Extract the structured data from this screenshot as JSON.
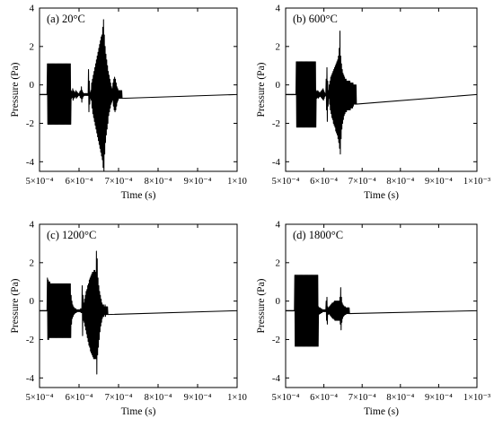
{
  "style": {
    "line_color": "#000000",
    "background": "#ffffff"
  },
  "chart_data": [
    {
      "type": "line",
      "panel_label": "(a) 20°C",
      "xlabel": "Time (s)",
      "ylabel": "Pressure (Pa)",
      "xlim": [
        0.0005,
        0.001
      ],
      "ylim": [
        -4.5,
        4
      ],
      "y_ticks": [
        -4,
        -2,
        0,
        2,
        4
      ],
      "y_tick_labels": [
        "-4",
        "-2",
        "0",
        "2",
        "4"
      ],
      "x_ticks": [
        0.0005,
        0.0006,
        0.0007,
        0.0008,
        0.0009,
        0.001
      ],
      "x_tick_labels": [
        "5×10⁻⁴",
        "6×10⁻⁴",
        "7×10⁻⁴",
        "8×10⁻⁴",
        "9×10⁻⁴",
        "1×10"
      ],
      "grid": false,
      "sampling": {
        "t_start": 0.0005,
        "dt": 1e-06
      },
      "series": [
        {
          "baseline": -0.5,
          "values": [
            -0.51,
            -0.49,
            -0.51,
            -0.49,
            -0.51,
            -0.49,
            -0.51,
            -0.49,
            -0.51,
            -0.49,
            -0.51,
            -0.49,
            -0.51,
            -0.49,
            -0.51,
            -0.49,
            -0.51,
            -0.49,
            -0.51,
            -0.49,
            1.1,
            -2.05,
            1.1,
            -2.05,
            1.1,
            -2.05,
            1.1,
            -2.05,
            1.1,
            -2.05,
            1.1,
            -2.05,
            1.1,
            -2.05,
            1.1,
            -2.05,
            1.1,
            -2.05,
            1.1,
            -2.05,
            1.1,
            -2.05,
            1.1,
            -2.05,
            1.1,
            -2.05,
            1.1,
            -2.05,
            1.1,
            -2.05,
            1.1,
            -2.05,
            1.1,
            -2.05,
            1.1,
            -2.05,
            1.1,
            -2.05,
            1.1,
            -2.05,
            1.1,
            -2.05,
            1.1,
            -2.05,
            1.1,
            -2.05,
            1.1,
            -2.05,
            1.1,
            -2.05,
            1.1,
            -2.05,
            1.1,
            -2.05,
            1.1,
            -2.05,
            1.1,
            -2.05,
            1.1,
            -2.05,
            -0.3,
            -0.7,
            -0.35,
            -0.65,
            -0.2,
            -0.8,
            -0.3,
            -0.7,
            -0.35,
            -0.65,
            -0.4,
            -0.6,
            -0.3,
            -0.7,
            -0.35,
            -0.65,
            -0.4,
            -0.6,
            -0.45,
            -0.55,
            -0.45,
            -0.55,
            -0.35,
            -0.65,
            -0.3,
            -0.7,
            -0.1,
            -0.9,
            -0.3,
            -0.7,
            -0.4,
            -0.6,
            -0.45,
            -0.55,
            -0.45,
            -0.55,
            -0.45,
            -0.55,
            -0.45,
            -0.55,
            -0.45,
            -0.55,
            -0.45,
            -0.55,
            0.8,
            -1.4,
            0.2,
            -1.0,
            -0.4,
            -0.7,
            -0.3,
            -0.8,
            0.1,
            -1.2,
            0.3,
            -1.5,
            0.5,
            -1.7,
            0.7,
            -1.9,
            0.9,
            -2.1,
            1.1,
            -2.3,
            1.3,
            -2.5,
            1.5,
            -2.7,
            1.7,
            -2.9,
            1.9,
            -3.1,
            2.1,
            -3.3,
            2.3,
            -3.5,
            2.5,
            -3.7,
            2.6,
            -3.9,
            3.0,
            -4.3,
            3.4,
            -4.6,
            2.6,
            -3.6,
            2.0,
            -3.0,
            1.6,
            -2.6,
            1.3,
            -2.3,
            1.0,
            -2.0,
            0.7,
            -1.6,
            0.5,
            -1.4,
            0.3,
            -1.2,
            0.1,
            -1.0,
            -0.1,
            -0.9,
            -0.2,
            -0.8,
            0.1,
            -1.1,
            0.3,
            -1.3,
            0.4,
            -1.4,
            0.3,
            -1.3,
            0.1,
            -1.1,
            -0.1,
            -0.9,
            -0.2,
            -0.8,
            -0.3,
            -0.7,
            -0.3,
            -0.7,
            -0.3,
            -0.7,
            -0.3,
            -0.7,
            -0.3,
            -0.7
          ]
        }
      ]
    },
    {
      "type": "line",
      "panel_label": "(b) 600°C",
      "xlabel": "Time (s)",
      "ylabel": "Pressure (Pa)",
      "xlim": [
        0.0005,
        0.001
      ],
      "ylim": [
        -4.5,
        4
      ],
      "y_ticks": [
        -4,
        -2,
        0,
        2,
        4
      ],
      "y_tick_labels": [
        "-4",
        "-2",
        "0",
        "2",
        "4"
      ],
      "x_ticks": [
        0.0005,
        0.0006,
        0.0007,
        0.0008,
        0.0009,
        0.001
      ],
      "x_tick_labels": [
        "5×10⁻⁴",
        "6×10⁻⁴",
        "7×10⁻⁴",
        "8×10⁻⁴",
        "9×10⁻⁴",
        "1×10⁻³"
      ],
      "grid": false,
      "sampling": {
        "t_start": 0.0005,
        "dt": 1e-06
      },
      "series": [
        {
          "baseline": -0.5,
          "values": [
            -0.51,
            -0.49,
            -0.51,
            -0.49,
            -0.51,
            -0.49,
            -0.51,
            -0.49,
            -0.51,
            -0.49,
            -0.51,
            -0.49,
            -0.51,
            -0.49,
            -0.51,
            -0.49,
            -0.51,
            -0.49,
            -0.51,
            -0.49,
            -0.51,
            -0.49,
            -0.51,
            -0.49,
            -0.51,
            -0.49,
            -0.51,
            -0.49,
            1.2,
            -2.2,
            1.2,
            -2.2,
            1.2,
            -2.2,
            1.2,
            -2.2,
            1.2,
            -2.2,
            1.2,
            -2.2,
            1.2,
            -2.2,
            1.2,
            -2.2,
            1.2,
            -2.2,
            1.2,
            -2.2,
            1.2,
            -2.2,
            1.2,
            -2.2,
            1.2,
            -2.2,
            1.2,
            -2.2,
            1.2,
            -2.2,
            1.2,
            -2.2,
            1.2,
            -2.2,
            1.2,
            -2.2,
            1.2,
            -2.2,
            1.2,
            -2.2,
            1.2,
            -2.2,
            1.2,
            -2.2,
            1.2,
            -2.2,
            1.2,
            -2.2,
            1.2,
            -2.2,
            1.2,
            -2.2,
            -0.3,
            -0.7,
            -0.35,
            -0.65,
            -0.3,
            -0.7,
            -0.35,
            -0.65,
            -0.4,
            -0.6,
            -0.4,
            -0.6,
            -0.35,
            -0.65,
            -0.3,
            -0.7,
            -0.25,
            -0.75,
            -0.2,
            -0.8,
            -0.3,
            -0.7,
            -0.4,
            -0.6,
            -0.45,
            -0.55,
            0.3,
            -1.3,
            0.9,
            -1.9,
            0.2,
            -1.1,
            -0.3,
            -0.7,
            0.0,
            -1.0,
            0.2,
            -1.3,
            0.4,
            -1.5,
            0.5,
            -1.7,
            0.6,
            -1.8,
            0.7,
            -2.0,
            0.8,
            -2.1,
            0.9,
            -2.2,
            1.0,
            -2.4,
            1.1,
            -2.5,
            1.2,
            -2.6,
            1.3,
            -2.8,
            1.5,
            -3.0,
            1.9,
            -3.3,
            2.8,
            -3.6,
            1.5,
            -2.8,
            1.1,
            -2.3,
            0.8,
            -2.0,
            0.6,
            -1.8,
            0.5,
            -1.6,
            0.4,
            -1.5,
            0.3,
            -1.4,
            0.3,
            -1.4,
            0.2,
            -1.3,
            0.2,
            -1.3,
            0.2,
            -1.3,
            0.2,
            -1.3,
            0.2,
            -1.3,
            0.1,
            -1.2,
            0.1,
            -1.2,
            0.1,
            -1.2,
            0.1,
            -1.1,
            0.0,
            -1.0,
            0.0,
            -1.0,
            0.0,
            -1.0,
            0.0,
            -1.0
          ]
        }
      ]
    },
    {
      "type": "line",
      "panel_label": "(c) 1200°C",
      "xlabel": "Time (s)",
      "ylabel": "Pressure (Pa)",
      "xlim": [
        0.0005,
        0.001
      ],
      "ylim": [
        -4.5,
        4
      ],
      "y_ticks": [
        -4,
        -2,
        0,
        2,
        4
      ],
      "y_tick_labels": [
        "-4",
        "-2",
        "0",
        "2",
        "4"
      ],
      "x_ticks": [
        0.0005,
        0.0006,
        0.0007,
        0.0008,
        0.0009,
        0.001
      ],
      "x_tick_labels": [
        "5×10⁻⁴",
        "6×10⁻⁴",
        "7×10⁻⁴",
        "8×10⁻⁴",
        "9×10⁻⁴",
        "1×10"
      ],
      "grid": false,
      "sampling": {
        "t_start": 0.0005,
        "dt": 1e-06
      },
      "series": [
        {
          "baseline": -0.5,
          "values": [
            -0.51,
            -0.49,
            -0.51,
            -0.49,
            -0.51,
            -0.49,
            -0.51,
            -0.49,
            -0.51,
            -0.49,
            -0.51,
            -0.49,
            -0.51,
            -0.49,
            -0.51,
            -0.49,
            -0.51,
            -0.49,
            -0.51,
            -0.49,
            1.2,
            -2.0,
            1.1,
            -2.0,
            1.0,
            -1.9,
            1.0,
            -1.9,
            0.9,
            -1.9,
            0.9,
            -1.9,
            0.9,
            -1.9,
            0.9,
            -1.9,
            0.9,
            -1.9,
            0.9,
            -1.9,
            0.9,
            -1.9,
            0.9,
            -1.9,
            0.9,
            -1.9,
            0.9,
            -1.9,
            0.9,
            -1.9,
            0.9,
            -1.9,
            0.9,
            -1.9,
            0.9,
            -1.9,
            0.9,
            -1.9,
            0.9,
            -1.9,
            0.9,
            -1.9,
            0.9,
            -1.9,
            0.9,
            -1.9,
            0.9,
            -1.9,
            0.9,
            -1.9,
            0.9,
            -1.9,
            0.9,
            -1.9,
            0.9,
            -1.9,
            0.9,
            -1.9,
            0.9,
            -1.9,
            0.3,
            -1.2,
            0.0,
            -0.9,
            -0.2,
            -0.8,
            -0.3,
            -0.7,
            -0.35,
            -0.65,
            -0.4,
            -0.6,
            -0.4,
            -0.6,
            -0.45,
            -0.55,
            -0.45,
            -0.55,
            -0.45,
            -0.55,
            -0.45,
            -0.55,
            -0.45,
            -0.55,
            -0.4,
            -0.6,
            -0.4,
            -0.6,
            0.8,
            -1.8,
            0.3,
            -1.0,
            -0.1,
            -1.1,
            0.1,
            -1.3,
            0.3,
            -1.5,
            0.5,
            -1.7,
            0.6,
            -1.9,
            0.8,
            -2.1,
            0.9,
            -2.3,
            1.1,
            -2.4,
            1.2,
            -2.6,
            1.3,
            -2.7,
            1.4,
            -2.8,
            1.5,
            -2.9,
            1.5,
            -3.0,
            1.6,
            -3.0,
            1.6,
            -3.0,
            1.5,
            -3.0,
            2.6,
            -3.8,
            2.2,
            -2.8,
            1.2,
            -2.4,
            0.8,
            -2.0,
            0.5,
            -1.6,
            0.3,
            -1.3,
            0.1,
            -1.1,
            -0.1,
            -0.9,
            -0.2,
            -0.8,
            -0.2,
            -0.8,
            -0.3,
            -0.7,
            -0.2,
            -0.8,
            -0.3,
            -0.7,
            -0.3,
            -0.7,
            -0.3,
            -0.7
          ]
        }
      ]
    },
    {
      "type": "line",
      "panel_label": "(d) 1800°C",
      "xlabel": "Time (s)",
      "ylabel": "Pressure (Pa)",
      "xlim": [
        0.0005,
        0.001
      ],
      "ylim": [
        -4.5,
        4
      ],
      "y_ticks": [
        -4,
        -2,
        0,
        2,
        4
      ],
      "y_tick_labels": [
        "-4",
        "-2",
        "0",
        "2",
        "4"
      ],
      "x_ticks": [
        0.0005,
        0.0006,
        0.0007,
        0.0008,
        0.0009,
        0.001
      ],
      "x_tick_labels": [
        "5×10⁻⁴",
        "6×10⁻⁴",
        "7×10⁻⁴",
        "8×10⁻⁴",
        "9×10⁻⁴",
        "1×10⁻³"
      ],
      "grid": false,
      "sampling": {
        "t_start": 0.0005,
        "dt": 1e-06
      },
      "series": [
        {
          "baseline": -0.5,
          "values": [
            -0.51,
            -0.49,
            -0.51,
            -0.49,
            -0.51,
            -0.49,
            -0.51,
            -0.49,
            -0.51,
            -0.49,
            -0.51,
            -0.49,
            -0.51,
            -0.49,
            -0.51,
            -0.49,
            -0.51,
            -0.49,
            -0.51,
            -0.49,
            -0.51,
            -0.49,
            -0.51,
            -0.49,
            1.35,
            -2.35,
            1.35,
            -2.35,
            1.35,
            -2.35,
            1.35,
            -2.35,
            1.35,
            -2.35,
            1.35,
            -2.35,
            1.35,
            -2.35,
            1.35,
            -2.35,
            1.35,
            -2.35,
            1.35,
            -2.35,
            1.35,
            -2.35,
            1.35,
            -2.35,
            1.35,
            -2.35,
            1.35,
            -2.35,
            1.35,
            -2.35,
            1.35,
            -2.35,
            1.35,
            -2.35,
            1.35,
            -2.35,
            1.35,
            -2.35,
            1.35,
            -2.35,
            1.35,
            -2.35,
            1.35,
            -2.35,
            1.35,
            -2.35,
            1.35,
            -2.35,
            1.35,
            -2.35,
            1.35,
            -2.35,
            1.35,
            -2.35,
            1.35,
            -2.35,
            1.35,
            -2.35,
            1.35,
            -2.35,
            1.35,
            -2.35,
            -0.3,
            -0.7,
            -0.35,
            -0.65,
            -0.35,
            -0.65,
            -0.4,
            -0.6,
            -0.4,
            -0.6,
            -0.45,
            -0.55,
            -0.45,
            -0.55,
            -0.45,
            -0.55,
            -0.45,
            -0.55,
            -0.45,
            -0.55,
            0.0,
            -1.0,
            0.2,
            -1.2,
            -0.3,
            -0.7,
            -0.35,
            -0.65,
            -0.3,
            -0.7,
            -0.25,
            -0.75,
            -0.2,
            -0.8,
            -0.15,
            -0.85,
            -0.1,
            -0.9,
            -0.1,
            -0.9,
            -0.05,
            -0.95,
            0.0,
            -1.0,
            0.0,
            -1.0,
            0.0,
            -1.0,
            0.0,
            -1.0,
            0.0,
            -1.0,
            0.0,
            -1.0,
            0.0,
            -1.0,
            0.2,
            -1.2,
            0.7,
            -1.5,
            0.2,
            -1.1,
            -0.1,
            -0.9,
            -0.2,
            -0.8,
            -0.25,
            -0.75,
            -0.3,
            -0.7,
            -0.3,
            -0.7,
            -0.35,
            -0.65,
            -0.35,
            -0.65,
            -0.35,
            -0.65,
            -0.35,
            -0.65,
            -0.35,
            -0.65
          ]
        }
      ]
    }
  ]
}
